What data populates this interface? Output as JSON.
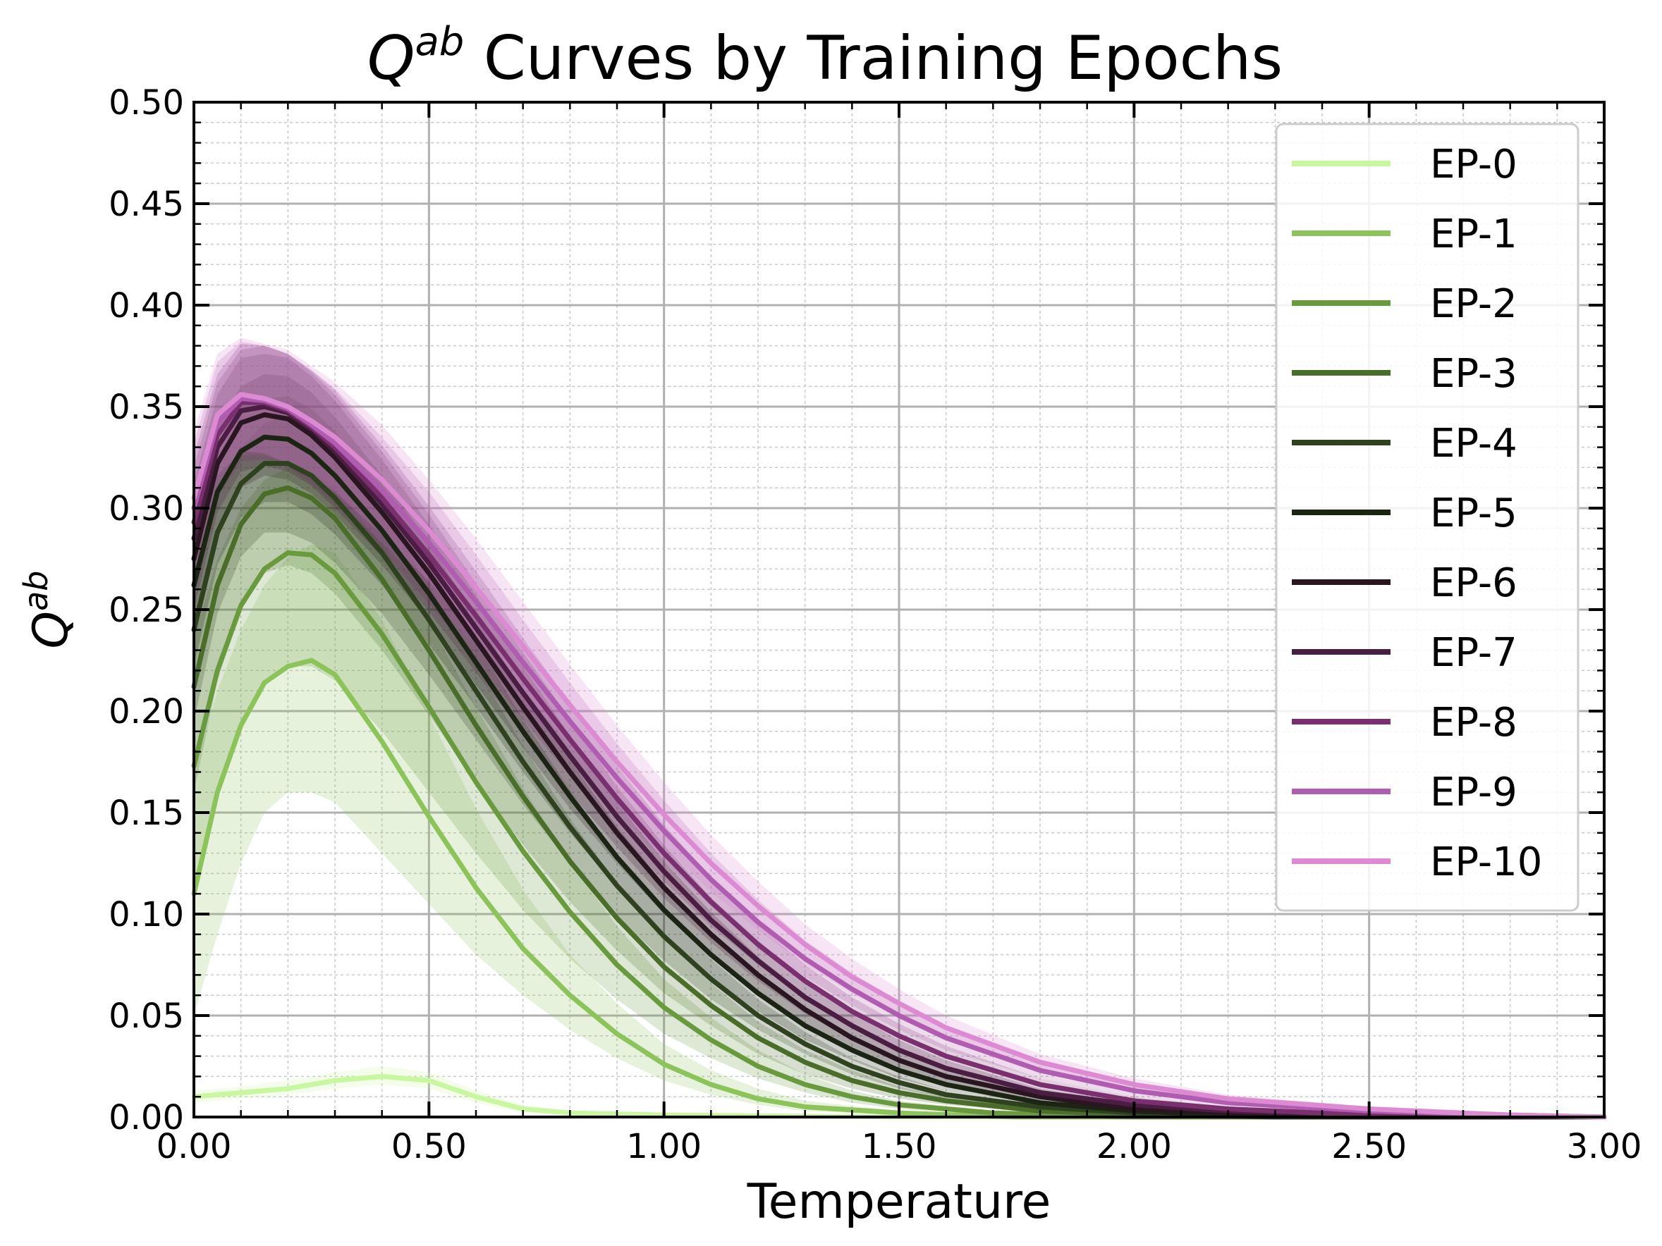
{
  "chart_data": {
    "type": "line",
    "title": "Q^ab Curves by Training Epochs",
    "title_symbol": "Q",
    "title_superscript": "ab",
    "title_rest": " Curves by Training Epochs",
    "xlabel": "Temperature",
    "ylabel_symbol": "Q",
    "ylabel_superscript": "ab",
    "xlim": [
      0,
      3
    ],
    "ylim": [
      0,
      0.5
    ],
    "x_ticks": [
      0,
      0.5,
      1.0,
      1.5,
      2.0,
      2.5,
      3.0
    ],
    "x_tick_labels": [
      "0.00",
      "0.50",
      "1.00",
      "1.50",
      "2.00",
      "2.50",
      "3.00"
    ],
    "y_ticks": [
      0,
      0.05,
      0.1,
      0.15,
      0.2,
      0.25,
      0.3,
      0.35,
      0.4,
      0.45,
      0.5
    ],
    "y_tick_labels": [
      "0.00",
      "0.05",
      "0.10",
      "0.15",
      "0.20",
      "0.25",
      "0.30",
      "0.35",
      "0.40",
      "0.45",
      "0.50"
    ],
    "x_minor_step": 0.1,
    "y_minor_step": 0.01,
    "grid": true,
    "legend_position": "top-right",
    "band_note": "shaded bands show spread around each mean curve",
    "series": [
      {
        "name": "EP-0",
        "color": "#c8f7a0",
        "x": [
          0,
          0.1,
          0.2,
          0.3,
          0.4,
          0.5,
          0.6,
          0.7,
          0.8,
          1.0,
          1.5,
          3.0
        ],
        "y": [
          0.01,
          0.012,
          0.014,
          0.018,
          0.02,
          0.018,
          0.01,
          0.004,
          0.002,
          0.001,
          0.0,
          0.0
        ],
        "lower": [
          0.007,
          0.009,
          0.011,
          0.014,
          0.016,
          0.014,
          0.007,
          0.002,
          0.001,
          0.0,
          0.0,
          0.0
        ],
        "upper": [
          0.013,
          0.015,
          0.018,
          0.022,
          0.025,
          0.022,
          0.013,
          0.006,
          0.003,
          0.002,
          0.0,
          0.0
        ]
      },
      {
        "name": "EP-1",
        "color": "#8cc35a",
        "x": [
          0,
          0.05,
          0.1,
          0.15,
          0.2,
          0.25,
          0.3,
          0.4,
          0.5,
          0.6,
          0.7,
          0.8,
          0.9,
          1.0,
          1.1,
          1.2,
          1.3,
          1.5,
          1.75,
          2.0,
          3.0
        ],
        "y": [
          0.11,
          0.16,
          0.193,
          0.214,
          0.222,
          0.225,
          0.218,
          0.185,
          0.148,
          0.113,
          0.083,
          0.06,
          0.041,
          0.026,
          0.016,
          0.009,
          0.005,
          0.002,
          0.0,
          0.0,
          0.0
        ],
        "lower": [
          0.05,
          0.09,
          0.125,
          0.15,
          0.16,
          0.16,
          0.155,
          0.13,
          0.105,
          0.08,
          0.06,
          0.043,
          0.029,
          0.018,
          0.011,
          0.006,
          0.003,
          0.001,
          0.0,
          0.0,
          0.0
        ],
        "upper": [
          0.17,
          0.21,
          0.24,
          0.262,
          0.276,
          0.282,
          0.278,
          0.245,
          0.198,
          0.152,
          0.112,
          0.08,
          0.056,
          0.036,
          0.023,
          0.014,
          0.008,
          0.003,
          0.001,
          0.0,
          0.0
        ]
      },
      {
        "name": "EP-2",
        "color": "#6a9a3e",
        "x": [
          0,
          0.05,
          0.1,
          0.15,
          0.2,
          0.25,
          0.3,
          0.4,
          0.5,
          0.6,
          0.7,
          0.8,
          0.9,
          1.0,
          1.1,
          1.2,
          1.3,
          1.4,
          1.5,
          1.7,
          2.0,
          2.5,
          3.0
        ],
        "y": [
          0.173,
          0.22,
          0.252,
          0.27,
          0.278,
          0.277,
          0.268,
          0.238,
          0.202,
          0.165,
          0.131,
          0.101,
          0.075,
          0.054,
          0.038,
          0.025,
          0.016,
          0.01,
          0.006,
          0.002,
          0.0,
          0.0,
          0.0
        ],
        "lower": [
          0.11,
          0.16,
          0.195,
          0.215,
          0.222,
          0.222,
          0.215,
          0.19,
          0.16,
          0.13,
          0.102,
          0.078,
          0.058,
          0.041,
          0.029,
          0.019,
          0.012,
          0.007,
          0.004,
          0.001,
          0.0,
          0.0,
          0.0
        ],
        "upper": [
          0.236,
          0.275,
          0.3,
          0.314,
          0.32,
          0.318,
          0.31,
          0.282,
          0.244,
          0.202,
          0.162,
          0.126,
          0.094,
          0.068,
          0.049,
          0.033,
          0.021,
          0.013,
          0.008,
          0.003,
          0.0,
          0.0,
          0.0
        ]
      },
      {
        "name": "EP-3",
        "color": "#4a6e2a",
        "x": [
          0,
          0.05,
          0.1,
          0.15,
          0.2,
          0.25,
          0.3,
          0.4,
          0.5,
          0.6,
          0.7,
          0.8,
          0.9,
          1.0,
          1.1,
          1.2,
          1.3,
          1.4,
          1.5,
          1.6,
          1.8,
          2.0,
          2.3,
          3.0
        ],
        "y": [
          0.212,
          0.262,
          0.292,
          0.307,
          0.31,
          0.305,
          0.295,
          0.265,
          0.23,
          0.193,
          0.158,
          0.126,
          0.098,
          0.074,
          0.055,
          0.039,
          0.027,
          0.018,
          0.012,
          0.008,
          0.003,
          0.001,
          0.0,
          0.0
        ],
        "lower": [
          0.16,
          0.215,
          0.25,
          0.268,
          0.272,
          0.268,
          0.258,
          0.23,
          0.198,
          0.165,
          0.134,
          0.106,
          0.082,
          0.061,
          0.045,
          0.031,
          0.021,
          0.014,
          0.009,
          0.006,
          0.002,
          0.0,
          0.0,
          0.0
        ],
        "upper": [
          0.264,
          0.306,
          0.33,
          0.342,
          0.346,
          0.342,
          0.332,
          0.3,
          0.262,
          0.222,
          0.183,
          0.147,
          0.115,
          0.088,
          0.066,
          0.047,
          0.033,
          0.023,
          0.015,
          0.01,
          0.004,
          0.001,
          0.0,
          0.0
        ]
      },
      {
        "name": "EP-4",
        "color": "#2e4220",
        "x": [
          0,
          0.05,
          0.1,
          0.15,
          0.2,
          0.25,
          0.3,
          0.4,
          0.5,
          0.6,
          0.7,
          0.8,
          0.9,
          1.0,
          1.1,
          1.2,
          1.3,
          1.4,
          1.5,
          1.6,
          1.8,
          2.0,
          2.3,
          3.0
        ],
        "y": [
          0.24,
          0.288,
          0.312,
          0.322,
          0.322,
          0.316,
          0.305,
          0.278,
          0.245,
          0.21,
          0.175,
          0.143,
          0.114,
          0.089,
          0.068,
          0.05,
          0.036,
          0.025,
          0.017,
          0.011,
          0.005,
          0.002,
          0.0,
          0.0
        ],
        "lower": [
          0.195,
          0.248,
          0.276,
          0.288,
          0.288,
          0.283,
          0.273,
          0.248,
          0.218,
          0.186,
          0.154,
          0.125,
          0.099,
          0.077,
          0.058,
          0.043,
          0.031,
          0.021,
          0.014,
          0.009,
          0.004,
          0.001,
          0.0,
          0.0
        ],
        "upper": [
          0.285,
          0.326,
          0.346,
          0.354,
          0.355,
          0.349,
          0.338,
          0.308,
          0.272,
          0.234,
          0.196,
          0.161,
          0.129,
          0.101,
          0.078,
          0.058,
          0.042,
          0.029,
          0.02,
          0.013,
          0.006,
          0.002,
          0.0,
          0.0
        ]
      },
      {
        "name": "EP-5",
        "color": "#1c2414",
        "x": [
          0,
          0.05,
          0.1,
          0.15,
          0.2,
          0.25,
          0.3,
          0.4,
          0.5,
          0.6,
          0.7,
          0.8,
          0.9,
          1.0,
          1.1,
          1.2,
          1.3,
          1.4,
          1.5,
          1.6,
          1.8,
          2.0,
          2.2,
          2.5,
          3.0
        ],
        "y": [
          0.262,
          0.308,
          0.328,
          0.335,
          0.334,
          0.327,
          0.316,
          0.289,
          0.258,
          0.224,
          0.19,
          0.158,
          0.128,
          0.102,
          0.08,
          0.061,
          0.045,
          0.033,
          0.023,
          0.016,
          0.007,
          0.003,
          0.001,
          0.0,
          0.0
        ],
        "lower": [
          0.222,
          0.272,
          0.295,
          0.303,
          0.303,
          0.297,
          0.287,
          0.262,
          0.233,
          0.202,
          0.17,
          0.14,
          0.113,
          0.089,
          0.069,
          0.052,
          0.038,
          0.028,
          0.019,
          0.013,
          0.006,
          0.002,
          0.0,
          0.0,
          0.0
        ],
        "upper": [
          0.302,
          0.342,
          0.36,
          0.366,
          0.365,
          0.357,
          0.345,
          0.316,
          0.283,
          0.246,
          0.21,
          0.176,
          0.143,
          0.115,
          0.091,
          0.07,
          0.052,
          0.038,
          0.027,
          0.019,
          0.009,
          0.004,
          0.001,
          0.0,
          0.0
        ]
      },
      {
        "name": "EP-6",
        "color": "#2a1620",
        "x": [
          0,
          0.05,
          0.1,
          0.15,
          0.2,
          0.25,
          0.3,
          0.4,
          0.5,
          0.6,
          0.7,
          0.8,
          0.9,
          1.0,
          1.1,
          1.2,
          1.3,
          1.4,
          1.5,
          1.6,
          1.8,
          2.0,
          2.2,
          2.5,
          3.0
        ],
        "y": [
          0.275,
          0.322,
          0.342,
          0.346,
          0.344,
          0.336,
          0.325,
          0.298,
          0.268,
          0.235,
          0.202,
          0.17,
          0.14,
          0.113,
          0.09,
          0.07,
          0.053,
          0.039,
          0.028,
          0.02,
          0.01,
          0.004,
          0.002,
          0.0,
          0.0
        ],
        "lower": [
          0.238,
          0.288,
          0.31,
          0.316,
          0.314,
          0.307,
          0.297,
          0.272,
          0.244,
          0.213,
          0.182,
          0.152,
          0.125,
          0.1,
          0.079,
          0.061,
          0.046,
          0.034,
          0.024,
          0.017,
          0.008,
          0.003,
          0.001,
          0.0,
          0.0
        ],
        "upper": [
          0.312,
          0.356,
          0.374,
          0.376,
          0.374,
          0.365,
          0.353,
          0.324,
          0.292,
          0.257,
          0.222,
          0.188,
          0.155,
          0.126,
          0.101,
          0.079,
          0.06,
          0.044,
          0.032,
          0.023,
          0.012,
          0.005,
          0.002,
          0.0,
          0.0
        ]
      },
      {
        "name": "EP-7",
        "color": "#4a1d42",
        "x": [
          0,
          0.05,
          0.1,
          0.15,
          0.2,
          0.25,
          0.3,
          0.4,
          0.5,
          0.6,
          0.7,
          0.8,
          0.9,
          1.0,
          1.1,
          1.2,
          1.3,
          1.4,
          1.5,
          1.6,
          1.8,
          2.0,
          2.2,
          2.5,
          3.0
        ],
        "y": [
          0.285,
          0.33,
          0.348,
          0.35,
          0.347,
          0.339,
          0.328,
          0.302,
          0.273,
          0.241,
          0.209,
          0.178,
          0.148,
          0.121,
          0.097,
          0.077,
          0.059,
          0.045,
          0.033,
          0.024,
          0.012,
          0.006,
          0.003,
          0.001,
          0.0
        ],
        "lower": [
          0.25,
          0.298,
          0.318,
          0.321,
          0.318,
          0.311,
          0.3,
          0.276,
          0.249,
          0.219,
          0.189,
          0.16,
          0.133,
          0.108,
          0.086,
          0.067,
          0.051,
          0.039,
          0.028,
          0.02,
          0.01,
          0.005,
          0.002,
          0.0,
          0.0
        ],
        "upper": [
          0.32,
          0.362,
          0.378,
          0.38,
          0.376,
          0.367,
          0.356,
          0.328,
          0.297,
          0.263,
          0.229,
          0.196,
          0.163,
          0.134,
          0.108,
          0.087,
          0.067,
          0.051,
          0.038,
          0.028,
          0.014,
          0.007,
          0.004,
          0.001,
          0.0
        ]
      },
      {
        "name": "EP-8",
        "color": "#7a2f6e",
        "x": [
          0,
          0.05,
          0.1,
          0.15,
          0.2,
          0.25,
          0.3,
          0.4,
          0.5,
          0.6,
          0.7,
          0.8,
          0.9,
          1.0,
          1.1,
          1.2,
          1.3,
          1.4,
          1.5,
          1.6,
          1.8,
          2.0,
          2.2,
          2.5,
          3.0
        ],
        "y": [
          0.293,
          0.336,
          0.352,
          0.352,
          0.348,
          0.34,
          0.33,
          0.305,
          0.277,
          0.247,
          0.216,
          0.186,
          0.157,
          0.13,
          0.106,
          0.085,
          0.067,
          0.052,
          0.04,
          0.03,
          0.016,
          0.008,
          0.004,
          0.001,
          0.0
        ],
        "lower": [
          0.26,
          0.306,
          0.323,
          0.324,
          0.32,
          0.312,
          0.302,
          0.279,
          0.253,
          0.225,
          0.196,
          0.168,
          0.141,
          0.116,
          0.094,
          0.075,
          0.059,
          0.045,
          0.034,
          0.025,
          0.013,
          0.006,
          0.003,
          0.0,
          0.0
        ],
        "upper": [
          0.326,
          0.366,
          0.381,
          0.38,
          0.376,
          0.368,
          0.358,
          0.331,
          0.301,
          0.269,
          0.236,
          0.204,
          0.173,
          0.144,
          0.118,
          0.095,
          0.075,
          0.059,
          0.046,
          0.035,
          0.019,
          0.01,
          0.005,
          0.002,
          0.0
        ]
      },
      {
        "name": "EP-9",
        "color": "#b05cb0",
        "x": [
          0,
          0.05,
          0.1,
          0.15,
          0.2,
          0.25,
          0.3,
          0.4,
          0.5,
          0.6,
          0.7,
          0.8,
          0.9,
          1.0,
          1.1,
          1.2,
          1.3,
          1.4,
          1.5,
          1.6,
          1.8,
          2.0,
          2.2,
          2.5,
          2.8,
          3.0
        ],
        "y": [
          0.3,
          0.342,
          0.354,
          0.353,
          0.349,
          0.341,
          0.332,
          0.309,
          0.283,
          0.254,
          0.224,
          0.195,
          0.167,
          0.141,
          0.117,
          0.096,
          0.078,
          0.063,
          0.05,
          0.039,
          0.023,
          0.013,
          0.007,
          0.003,
          0.001,
          0.0
        ],
        "lower": [
          0.268,
          0.312,
          0.326,
          0.326,
          0.322,
          0.314,
          0.305,
          0.283,
          0.258,
          0.231,
          0.203,
          0.176,
          0.15,
          0.126,
          0.104,
          0.085,
          0.069,
          0.055,
          0.043,
          0.033,
          0.019,
          0.01,
          0.005,
          0.002,
          0.0,
          0.0
        ],
        "upper": [
          0.332,
          0.372,
          0.382,
          0.38,
          0.376,
          0.368,
          0.359,
          0.335,
          0.308,
          0.277,
          0.245,
          0.214,
          0.184,
          0.156,
          0.13,
          0.107,
          0.087,
          0.071,
          0.057,
          0.045,
          0.027,
          0.016,
          0.009,
          0.004,
          0.001,
          0.0
        ]
      },
      {
        "name": "EP-10",
        "color": "#dc8ad2",
        "x": [
          0,
          0.05,
          0.1,
          0.15,
          0.2,
          0.25,
          0.3,
          0.4,
          0.5,
          0.6,
          0.7,
          0.8,
          0.9,
          1.0,
          1.1,
          1.2,
          1.3,
          1.4,
          1.5,
          1.6,
          1.8,
          2.0,
          2.2,
          2.5,
          2.8,
          3.0
        ],
        "y": [
          0.305,
          0.346,
          0.356,
          0.354,
          0.35,
          0.343,
          0.335,
          0.314,
          0.289,
          0.261,
          0.232,
          0.203,
          0.175,
          0.149,
          0.125,
          0.104,
          0.085,
          0.069,
          0.056,
          0.044,
          0.027,
          0.016,
          0.009,
          0.004,
          0.001,
          0.0
        ],
        "lower": [
          0.272,
          0.316,
          0.328,
          0.327,
          0.322,
          0.316,
          0.308,
          0.287,
          0.264,
          0.237,
          0.21,
          0.183,
          0.157,
          0.133,
          0.111,
          0.092,
          0.075,
          0.061,
          0.049,
          0.038,
          0.023,
          0.013,
          0.007,
          0.003,
          0.0,
          0.0
        ],
        "upper": [
          0.338,
          0.376,
          0.384,
          0.381,
          0.378,
          0.37,
          0.362,
          0.341,
          0.314,
          0.285,
          0.254,
          0.223,
          0.193,
          0.165,
          0.139,
          0.116,
          0.095,
          0.078,
          0.063,
          0.05,
          0.031,
          0.019,
          0.011,
          0.005,
          0.002,
          0.001
        ]
      }
    ]
  }
}
